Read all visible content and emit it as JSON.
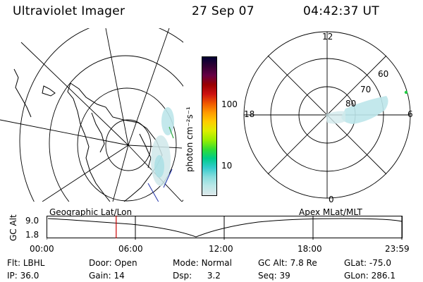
{
  "header": {
    "instrument": "Ultraviolet Imager",
    "date": "27 Sep 07",
    "time": "04:42:37 UT"
  },
  "colorbar": {
    "unit": "photon cm⁻²s⁻¹",
    "ticks": [
      "100",
      "10"
    ],
    "colors": [
      "#000033",
      "#330033",
      "#660044",
      "#990000",
      "#cc1111",
      "#ee5500",
      "#ff9900",
      "#ffcc00",
      "#ddee00",
      "#99ee00",
      "#33dd33",
      "#00cc88",
      "#33cccc",
      "#88dddd",
      "#bbe8e8",
      "#dde8ea"
    ]
  },
  "geo_map": {
    "label": "Geographic Lat/Lon"
  },
  "mlt_dial": {
    "label": "Apex MLat/MLT",
    "hour_labels": {
      "top": "12",
      "left": "18",
      "right": "6",
      "bottom": "0"
    },
    "lat_labels": [
      "60",
      "70",
      "80"
    ]
  },
  "altitude_plot": {
    "ylabel": "GC Alt",
    "yticks": [
      "9.0",
      "1.8"
    ],
    "xticks": [
      "00:00",
      "06:00",
      "12:00",
      "18:00",
      "23:59"
    ],
    "marker_time": "04:42",
    "marker_color": "#cc0000"
  },
  "info": {
    "flt_label": "Flt:",
    "flt_value": "LBHL",
    "ip_label": "IP:",
    "ip_value": "36.0",
    "door_label": "Door:",
    "door_value": "Open",
    "gain_label": "Gain:",
    "gain_value": "14",
    "mode_label": "Mode:",
    "mode_value": "Normal",
    "dsp_label": "Dsp:",
    "dsp_value": "3.2",
    "gcalt_label": "GC Alt:",
    "gcalt_value": "7.8 Re",
    "seq_label": "Seq:",
    "seq_value": "39",
    "glat_label": "GLat:",
    "glat_value": "-75.0",
    "glon_label": "GLon:",
    "glon_value": "286.1"
  }
}
